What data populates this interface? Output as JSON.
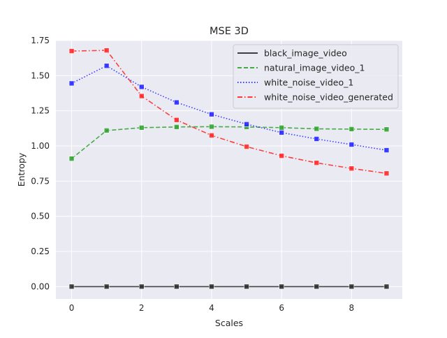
{
  "chart_data": {
    "type": "line",
    "title": "MSE 3D",
    "xlabel": "Scales",
    "ylabel": "Entropy",
    "x": [
      0,
      1,
      2,
      3,
      4,
      5,
      6,
      7,
      8,
      9
    ],
    "xlim": [
      -0.45,
      9.45
    ],
    "ylim": [
      -0.0875,
      1.75
    ],
    "xticks": [
      0,
      2,
      4,
      6,
      8
    ],
    "xtick_labels": [
      "0",
      "2",
      "4",
      "6",
      "8"
    ],
    "yticks": [
      0,
      0.25,
      0.5,
      0.75,
      1.0,
      1.25,
      1.5,
      1.75
    ],
    "ytick_labels": [
      "0.00",
      "0.25",
      "0.50",
      "0.75",
      "1.00",
      "1.25",
      "1.50",
      "1.75"
    ],
    "grid": true,
    "legend_position": "top-right",
    "series": [
      {
        "name": "black_image_video",
        "color": "#262626",
        "dash": "solid",
        "marker": "square",
        "values": [
          0,
          0,
          0,
          0,
          0,
          0,
          0,
          0,
          0,
          0
        ]
      },
      {
        "name": "natural_image_video_1",
        "color": "#2ca02c",
        "dash": "dashed",
        "marker": "square",
        "values": [
          0.91,
          1.11,
          1.13,
          1.135,
          1.137,
          1.135,
          1.13,
          1.122,
          1.12,
          1.118
        ]
      },
      {
        "name": "white_noise_video_1",
        "color": "#1f1fff",
        "dash": "dotted",
        "marker": "square",
        "values": [
          1.445,
          1.57,
          1.42,
          1.31,
          1.225,
          1.155,
          1.095,
          1.05,
          1.01,
          0.97
        ]
      },
      {
        "name": "white_noise_video_generated",
        "color": "#ff2222",
        "dash": "dashdot",
        "marker": "square",
        "values": [
          1.675,
          1.68,
          1.355,
          1.185,
          1.075,
          0.995,
          0.93,
          0.88,
          0.84,
          0.805
        ]
      }
    ]
  }
}
